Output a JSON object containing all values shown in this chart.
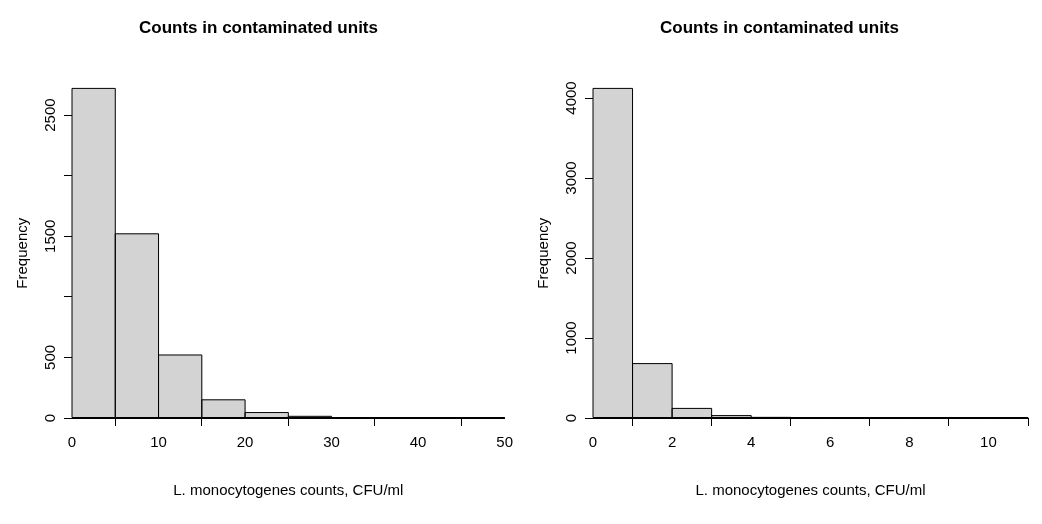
{
  "chart_data": [
    {
      "type": "histogram",
      "title": "Counts in contaminated units",
      "xlabel": "L. monocytogenes counts, CFU/ml",
      "ylabel": "Frequency",
      "bins": [
        0,
        5,
        10,
        15,
        20,
        25,
        30,
        35,
        40,
        45,
        50
      ],
      "values": [
        2720,
        1520,
        520,
        150,
        45,
        14,
        4,
        2,
        1,
        1
      ],
      "color": "#d3d3d3",
      "xlim": [
        0,
        50
      ],
      "xticks": [
        0,
        10,
        20,
        30,
        40,
        50
      ],
      "ylim": [
        0,
        2720
      ],
      "yticks": [
        0,
        500,
        {
          "value": 1000,
          "label": null
        },
        1500,
        {
          "value": 2000,
          "label": null
        },
        2500
      ],
      "grid": false,
      "legend": false
    },
    {
      "type": "histogram",
      "title": "Counts in contaminated units",
      "xlabel": "L. monocytogenes counts, CFU/ml",
      "ylabel": "Frequency",
      "bins": [
        0,
        1,
        2,
        3,
        4,
        5,
        6,
        7,
        8,
        9,
        10,
        11
      ],
      "values": [
        4120,
        680,
        120,
        30,
        8,
        3,
        2,
        1,
        1,
        1,
        1
      ],
      "color": "#d3d3d3",
      "xlim": [
        0,
        11
      ],
      "xticks": [
        0,
        2,
        4,
        6,
        8,
        10
      ],
      "ylim": [
        0,
        4120
      ],
      "yticks": [
        0,
        1000,
        2000,
        3000,
        4000
      ],
      "grid": false,
      "legend": false
    }
  ]
}
